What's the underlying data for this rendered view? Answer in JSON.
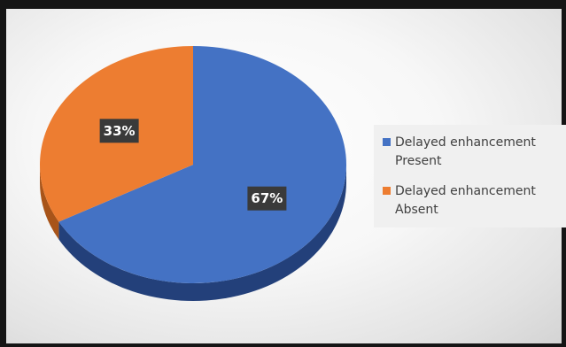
{
  "chart_data": {
    "type": "pie",
    "title": "",
    "categories": [
      "Delayed enhancement Present",
      "Delayed enhancement Absent"
    ],
    "values": [
      67,
      33
    ],
    "data_labels": [
      "67%",
      "33%"
    ],
    "colors": [
      "#4472C4",
      "#ED7D31"
    ],
    "legend": {
      "position": "right",
      "entries": [
        {
          "text": "Delayed enhancement Present",
          "color": "#4472C4"
        },
        {
          "text": "Delayed enhancement Absent",
          "color": "#ED7D31"
        }
      ]
    },
    "style": "3d"
  }
}
